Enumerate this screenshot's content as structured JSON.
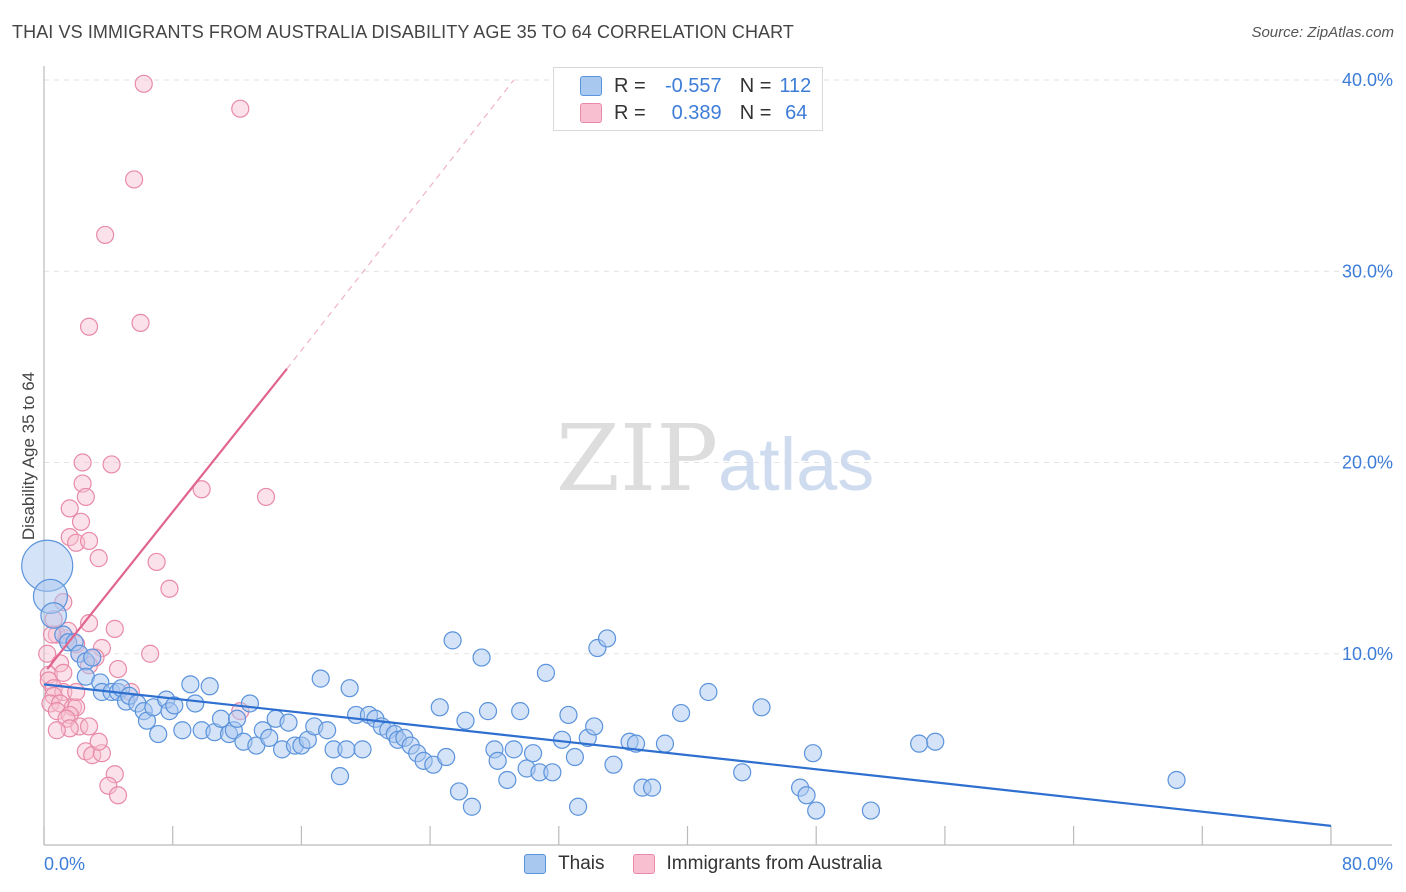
{
  "header": {
    "title": "THAI VS IMMIGRANTS FROM AUSTRALIA DISABILITY AGE 35 TO 64 CORRELATION CHART",
    "source": "Source: ZipAtlas.com"
  },
  "watermark": {
    "zip": "ZIP",
    "atlas": "atlas"
  },
  "legend_top": {
    "rows": [
      {
        "r_label": "R =",
        "r_value": "-0.557",
        "n_label": "N =",
        "n_value": "112"
      },
      {
        "r_label": "R =",
        "r_value": "0.389",
        "n_label": "N =",
        "n_value": "64"
      }
    ]
  },
  "colors": {
    "blue_fill": "#a9c8f0",
    "blue_stroke": "#5b93dc",
    "blue_line": "#2e6fd0",
    "pink_fill": "#f7bfd0",
    "pink_stroke": "#e88aa8",
    "pink_line": "#e0648e",
    "tick_text": "#3d7dd8",
    "grid": "#e2e2e2"
  },
  "chart_data": {
    "type": "scatter",
    "title": "THAI VS IMMIGRANTS FROM AUSTRALIA DISABILITY AGE 35 TO 64 CORRELATION CHART",
    "xlabel": "",
    "ylabel": "Disability Age 35 to 64",
    "xlim": [
      0,
      80
    ],
    "ylim": [
      0,
      40
    ],
    "x_tick_labels": [
      "0.0%",
      "80.0%"
    ],
    "y_ticks": [
      10,
      20,
      30,
      40
    ],
    "y_tick_labels": [
      "10.0%",
      "20.0%",
      "30.0%",
      "40.0%"
    ],
    "grid": true,
    "legend_placement": "bottom-center",
    "series": [
      {
        "name": "Thais",
        "R": -0.557,
        "N": 112,
        "trend": {
          "x": [
            0,
            80
          ],
          "y": [
            8.4,
            1.0
          ]
        },
        "points": [
          [
            0.2,
            14.6,
            3
          ],
          [
            0.4,
            13.0,
            2
          ],
          [
            0.6,
            12.0,
            1.5
          ],
          [
            1.2,
            11.0,
            1
          ],
          [
            1.5,
            10.6,
            1
          ],
          [
            1.9,
            10.6,
            1
          ],
          [
            2.2,
            10.0,
            1
          ],
          [
            2.6,
            9.6,
            1
          ],
          [
            3.0,
            9.8,
            1
          ],
          [
            2.6,
            8.8,
            1
          ],
          [
            3.5,
            8.5,
            1
          ],
          [
            3.6,
            8.0,
            1
          ],
          [
            4.2,
            8.0,
            1
          ],
          [
            4.6,
            8.0,
            1
          ],
          [
            4.8,
            8.2,
            1
          ],
          [
            5.1,
            7.5,
            1
          ],
          [
            5.3,
            7.8,
            1
          ],
          [
            5.8,
            7.4,
            1
          ],
          [
            6.2,
            7.0,
            1
          ],
          [
            6.4,
            6.5,
            1
          ],
          [
            6.8,
            7.2,
            1
          ],
          [
            7.1,
            5.8,
            1
          ],
          [
            7.6,
            7.6,
            1
          ],
          [
            7.8,
            7.0,
            1
          ],
          [
            8.1,
            7.3,
            1
          ],
          [
            8.6,
            6.0,
            1
          ],
          [
            9.1,
            8.4,
            1
          ],
          [
            9.4,
            7.4,
            1
          ],
          [
            9.8,
            6.0,
            1
          ],
          [
            10.3,
            8.3,
            1
          ],
          [
            10.6,
            5.9,
            1
          ],
          [
            11.0,
            6.6,
            1
          ],
          [
            11.5,
            5.8,
            1
          ],
          [
            11.8,
            6.0,
            1
          ],
          [
            12.0,
            6.6,
            1
          ],
          [
            12.4,
            5.4,
            1
          ],
          [
            12.8,
            7.4,
            1
          ],
          [
            13.2,
            5.2,
            1
          ],
          [
            13.6,
            6.0,
            1
          ],
          [
            14.0,
            5.6,
            1
          ],
          [
            14.4,
            6.6,
            1
          ],
          [
            14.8,
            5.0,
            1
          ],
          [
            15.2,
            6.4,
            1
          ],
          [
            15.6,
            5.2,
            1
          ],
          [
            16.0,
            5.2,
            1
          ],
          [
            16.4,
            5.5,
            1
          ],
          [
            16.8,
            6.2,
            1
          ],
          [
            17.2,
            8.7,
            1
          ],
          [
            17.6,
            6.0,
            1
          ],
          [
            18.0,
            5.0,
            1
          ],
          [
            18.4,
            3.6,
            1
          ],
          [
            18.8,
            5.0,
            1
          ],
          [
            19.0,
            8.2,
            1
          ],
          [
            19.4,
            6.8,
            1
          ],
          [
            19.8,
            5.0,
            1
          ],
          [
            20.2,
            6.8,
            1
          ],
          [
            20.6,
            6.6,
            1
          ],
          [
            21.0,
            6.2,
            1
          ],
          [
            21.4,
            6.0,
            1
          ],
          [
            21.8,
            5.8,
            1
          ],
          [
            22.0,
            5.5,
            1
          ],
          [
            22.4,
            5.6,
            1
          ],
          [
            22.8,
            5.2,
            1
          ],
          [
            23.2,
            4.8,
            1
          ],
          [
            23.6,
            4.4,
            1
          ],
          [
            24.2,
            4.2,
            1
          ],
          [
            24.6,
            7.2,
            1
          ],
          [
            25.0,
            4.6,
            1
          ],
          [
            25.4,
            10.7,
            1
          ],
          [
            25.8,
            2.8,
            1
          ],
          [
            26.2,
            6.5,
            1
          ],
          [
            26.6,
            2.0,
            1
          ],
          [
            27.2,
            9.8,
            1
          ],
          [
            27.6,
            7.0,
            1
          ],
          [
            28.0,
            5.0,
            1
          ],
          [
            28.2,
            4.4,
            1
          ],
          [
            28.8,
            3.4,
            1
          ],
          [
            29.2,
            5.0,
            1
          ],
          [
            29.6,
            7.0,
            1
          ],
          [
            30.0,
            4.0,
            1
          ],
          [
            30.4,
            4.8,
            1
          ],
          [
            30.8,
            3.8,
            1
          ],
          [
            31.2,
            9.0,
            1
          ],
          [
            31.6,
            3.8,
            1
          ],
          [
            32.2,
            5.5,
            1
          ],
          [
            32.6,
            6.8,
            1
          ],
          [
            33.0,
            4.6,
            1
          ],
          [
            33.2,
            2.0,
            1
          ],
          [
            33.8,
            5.6,
            1
          ],
          [
            34.2,
            6.2,
            1
          ],
          [
            34.4,
            10.3,
            1
          ],
          [
            35.0,
            10.8,
            1
          ],
          [
            35.4,
            4.2,
            1
          ],
          [
            36.4,
            5.4,
            1
          ],
          [
            36.8,
            5.3,
            1
          ],
          [
            37.2,
            3.0,
            1
          ],
          [
            37.8,
            3.0,
            1
          ],
          [
            38.6,
            5.3,
            1
          ],
          [
            39.6,
            6.9,
            1
          ],
          [
            41.3,
            8.0,
            1
          ],
          [
            43.4,
            3.8,
            1
          ],
          [
            44.6,
            7.2,
            1
          ],
          [
            47.0,
            3.0,
            1
          ],
          [
            47.4,
            2.6,
            1
          ],
          [
            47.8,
            4.8,
            1
          ],
          [
            48.0,
            1.8,
            1
          ],
          [
            51.4,
            1.8,
            1
          ],
          [
            54.4,
            5.3,
            1
          ],
          [
            55.4,
            5.4,
            1
          ],
          [
            70.4,
            3.4,
            1
          ]
        ]
      },
      {
        "name": "Immigrants from Australia",
        "R": 0.389,
        "N": 64,
        "trend": {
          "x": [
            0.2,
            15.1
          ],
          "y": [
            9.2,
            24.9
          ]
        },
        "trend_extension": {
          "x": [
            15.1,
            29.2
          ],
          "y": [
            24.9,
            40.0
          ]
        },
        "points": [
          [
            6.2,
            39.8,
            1
          ],
          [
            12.2,
            38.5,
            1
          ],
          [
            5.6,
            34.8,
            1
          ],
          [
            3.8,
            31.9,
            1
          ],
          [
            2.8,
            27.1,
            1
          ],
          [
            6.0,
            27.3,
            1
          ],
          [
            2.4,
            20.0,
            1
          ],
          [
            4.2,
            19.9,
            1
          ],
          [
            9.8,
            18.6,
            1
          ],
          [
            13.8,
            18.2,
            1
          ],
          [
            2.4,
            18.9,
            1
          ],
          [
            2.6,
            18.2,
            1
          ],
          [
            1.6,
            17.6,
            1
          ],
          [
            2.3,
            16.9,
            1
          ],
          [
            1.6,
            16.1,
            1
          ],
          [
            2.0,
            15.8,
            1
          ],
          [
            2.8,
            15.9,
            1
          ],
          [
            3.4,
            15.0,
            1
          ],
          [
            7.0,
            14.8,
            1
          ],
          [
            7.8,
            13.4,
            1
          ],
          [
            1.2,
            12.7,
            1
          ],
          [
            0.6,
            11.8,
            1
          ],
          [
            2.8,
            11.6,
            1
          ],
          [
            4.4,
            11.3,
            1
          ],
          [
            0.8,
            11.0,
            1
          ],
          [
            1.4,
            10.8,
            1
          ],
          [
            2.0,
            10.5,
            1
          ],
          [
            3.6,
            10.3,
            1
          ],
          [
            2.2,
            10.0,
            1
          ],
          [
            3.2,
            9.8,
            1
          ],
          [
            6.6,
            10.0,
            1
          ],
          [
            1.0,
            9.5,
            1
          ],
          [
            2.8,
            9.4,
            1
          ],
          [
            4.6,
            9.2,
            1
          ],
          [
            0.3,
            8.9,
            1
          ],
          [
            0.3,
            8.6,
            1
          ],
          [
            0.6,
            8.2,
            1
          ],
          [
            1.2,
            8.0,
            1
          ],
          [
            0.6,
            7.8,
            1
          ],
          [
            0.4,
            7.4,
            1
          ],
          [
            1.0,
            7.4,
            1
          ],
          [
            1.8,
            7.2,
            1
          ],
          [
            2.0,
            7.2,
            1
          ],
          [
            0.8,
            7.0,
            1
          ],
          [
            1.6,
            6.8,
            1
          ],
          [
            1.4,
            6.6,
            1
          ],
          [
            2.2,
            6.2,
            1
          ],
          [
            1.6,
            6.1,
            1
          ],
          [
            0.8,
            6.0,
            1
          ],
          [
            2.8,
            6.2,
            1
          ],
          [
            12.2,
            7.0,
            1
          ],
          [
            5.4,
            8.0,
            1
          ],
          [
            2.6,
            4.9,
            1
          ],
          [
            3.0,
            4.7,
            1
          ],
          [
            3.6,
            4.8,
            1
          ],
          [
            4.4,
            3.7,
            1
          ],
          [
            4.0,
            3.1,
            1
          ],
          [
            4.6,
            2.6,
            1
          ],
          [
            1.2,
            9.0,
            1
          ],
          [
            1.5,
            11.2,
            1
          ],
          [
            0.2,
            10.0,
            1
          ],
          [
            2.0,
            8.0,
            1
          ],
          [
            0.5,
            11.0,
            1
          ],
          [
            3.4,
            5.4,
            1
          ]
        ]
      }
    ]
  },
  "legend_bottom": {
    "items": [
      "Thais",
      "Immigrants from Australia"
    ]
  }
}
